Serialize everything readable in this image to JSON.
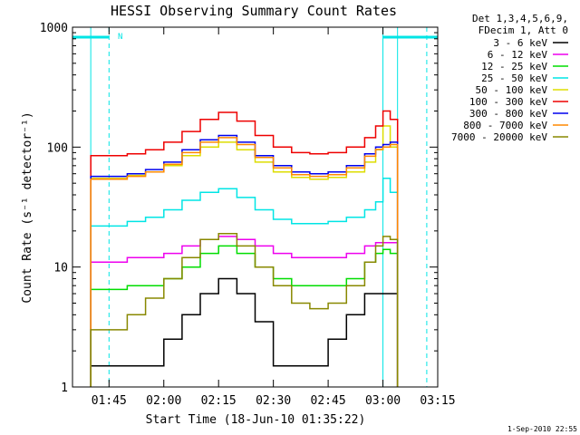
{
  "chart_data": {
    "type": "line",
    "title": "HESSI Observing Summary Count Rates",
    "xlabel": "Start Time (18-Jun-10 01:35:22)",
    "ylabel": "Count Rate (s⁻¹ detector⁻¹)",
    "y_scale": "log",
    "ylim": [
      1,
      1000
    ],
    "xlim": [
      "01:35",
      "03:15"
    ],
    "x_ticks": [
      "01:45",
      "02:00",
      "02:15",
      "02:30",
      "02:45",
      "03:00",
      "03:15"
    ],
    "y_ticks": [
      "1",
      "10",
      "100",
      "1000"
    ],
    "legend_position": "top-right",
    "legend_header": [
      "Det 1,3,4,5,6,9,",
      "FDecim 1, Att 0"
    ],
    "timestamp": "1-Sep-2010 22:55",
    "annotation": "N",
    "night_markers": {
      "color": "#00e5e5",
      "segments": [
        {
          "from": "01:35",
          "to": "01:45"
        },
        {
          "from": "03:00",
          "to": "03:15"
        }
      ],
      "solid_lines": [
        "01:40",
        "03:00",
        "03:04"
      ],
      "dashed_lines": [
        "01:45",
        "03:12"
      ]
    },
    "data_window": [
      "01:40",
      "03:04"
    ],
    "x": [
      "01:40",
      "01:45",
      "01:50",
      "01:55",
      "02:00",
      "02:05",
      "02:10",
      "02:15",
      "02:20",
      "02:25",
      "02:30",
      "02:35",
      "02:40",
      "02:45",
      "02:50",
      "02:55",
      "02:58",
      "03:00",
      "03:02",
      "03:04"
    ],
    "series": [
      {
        "name": "3 - 6 keV",
        "color": "#000000",
        "values": [
          1.5,
          1.5,
          1.5,
          1.5,
          2.5,
          4,
          6,
          8,
          6,
          3.5,
          1.5,
          1.5,
          1.5,
          2.5,
          4,
          6,
          6,
          6,
          6,
          5
        ]
      },
      {
        "name": "6 - 12 keV",
        "color": "#ee00ee",
        "values": [
          11,
          11,
          12,
          12,
          13,
          15,
          17,
          18,
          17,
          15,
          13,
          12,
          12,
          12,
          13,
          15,
          16,
          16,
          16,
          15
        ]
      },
      {
        "name": "12 - 25 keV",
        "color": "#00dd00",
        "values": [
          6.5,
          6.5,
          7,
          7,
          8,
          10,
          13,
          15,
          13,
          10,
          8,
          7,
          7,
          7,
          8,
          11,
          13,
          14,
          13,
          13
        ]
      },
      {
        "name": "25 - 50 keV",
        "color": "#00e5e5",
        "values": [
          22,
          22,
          24,
          26,
          30,
          36,
          42,
          45,
          38,
          30,
          25,
          23,
          23,
          24,
          26,
          30,
          35,
          55,
          42,
          35
        ]
      },
      {
        "name": "50 - 100 keV",
        "color": "#dddd00",
        "values": [
          55,
          55,
          58,
          62,
          70,
          85,
          100,
          110,
          95,
          75,
          62,
          56,
          54,
          56,
          62,
          75,
          95,
          150,
          100,
          90
        ]
      },
      {
        "name": "100 - 300 keV",
        "color": "#ee0000",
        "values": [
          85,
          85,
          88,
          95,
          110,
          135,
          170,
          195,
          165,
          125,
          100,
          90,
          88,
          90,
          100,
          120,
          150,
          200,
          170,
          150
        ]
      },
      {
        "name": "300 - 800 keV",
        "color": "#0000ee",
        "values": [
          57,
          57,
          60,
          65,
          75,
          95,
          115,
          125,
          110,
          85,
          70,
          62,
          60,
          62,
          70,
          88,
          100,
          105,
          110,
          100
        ]
      },
      {
        "name": "800 - 7000 keV",
        "color": "#ff8800",
        "values": [
          54,
          54,
          57,
          62,
          72,
          90,
          110,
          120,
          105,
          82,
          67,
          59,
          57,
          59,
          67,
          84,
          96,
          100,
          105,
          95
        ]
      },
      {
        "name": "7000 - 20000 keV",
        "color": "#888800",
        "values": [
          3,
          3,
          4,
          5.5,
          8,
          12,
          17,
          19,
          15,
          10,
          7,
          5,
          4.5,
          5,
          7,
          11,
          15,
          18,
          17,
          15
        ]
      }
    ]
  }
}
